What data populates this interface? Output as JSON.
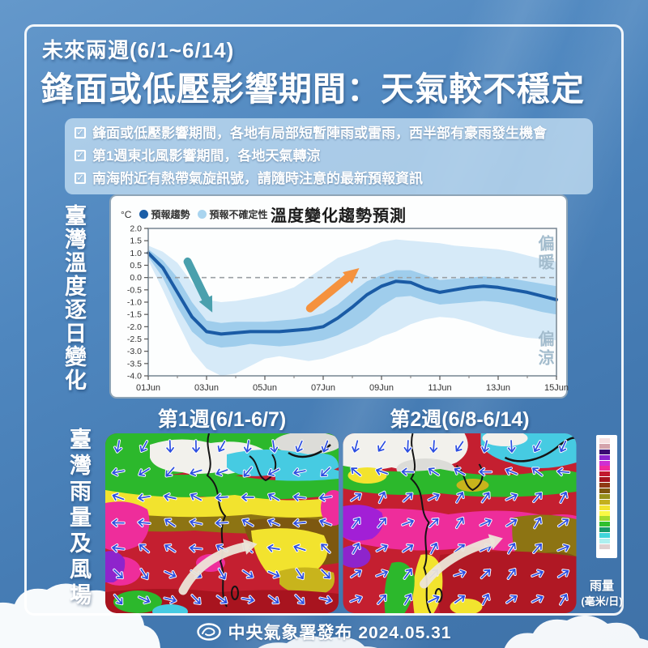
{
  "header": {
    "small_title": "未來兩週(6/1~6/14)",
    "main_title": "鋒面或低壓影響期間：天氣較不穩定"
  },
  "bullets": {
    "items": [
      {
        "label": "鋒面或低壓影響期間，各地有局部短暫陣雨或雷雨，西半部有豪雨發生機會"
      },
      {
        "label": "第1週東北風影響期間，各地天氣轉涼"
      },
      {
        "label": "南海附近有熱帶氣旋訊號，請隨時注意的最新預報資訊"
      }
    ]
  },
  "sections": {
    "temperature_title_vertical": "臺灣溫度逐日變化",
    "rain_wind_title_vertical": "臺灣雨量及風場"
  },
  "chart_data": {
    "type": "line",
    "title": "溫度變化趨勢預測",
    "unit_label": "°C",
    "legend": [
      {
        "name": "預報趨勢",
        "color": "#1b5ea7"
      },
      {
        "name": "預報不確定性",
        "color": "#a9d4ef"
      }
    ],
    "ylim": [
      -4.0,
      2.0
    ],
    "y_tick_labels": [
      "2.0",
      "1.5",
      "1.0",
      "0.5",
      "0.0",
      "-0.5",
      "-1.0",
      "-1.5",
      "-2.0",
      "-2.5",
      "-3.0",
      "-3.5",
      "-4.0"
    ],
    "x_tick_labels": [
      "01Jun",
      "03Jun",
      "05Jun",
      "07Jun",
      "09Jun",
      "11Jun",
      "13Jun",
      "15Jun"
    ],
    "x_tick_days": [
      1,
      3,
      5,
      7,
      9,
      11,
      13,
      15
    ],
    "x_minor_tick_days": [
      2,
      4,
      6,
      8,
      10,
      12,
      14
    ],
    "x_days": [
      1,
      1.5,
      2,
      2.5,
      3,
      3.5,
      4,
      4.5,
      5,
      5.5,
      6,
      6.5,
      7,
      7.5,
      8,
      8.5,
      9,
      9.5,
      10,
      10.5,
      11,
      11.5,
      12,
      12.5,
      13,
      13.5,
      14,
      14.5,
      15
    ],
    "zero_reference": 0.0,
    "trend_color": "#1a5ba5",
    "band_inner_color": "#9fcdec",
    "band_outer_color": "#d6eaf8",
    "series": [
      {
        "name": "預報趨勢",
        "role": "trend",
        "values": [
          1.0,
          0.4,
          -0.6,
          -1.6,
          -2.2,
          -2.3,
          -2.25,
          -2.2,
          -2.2,
          -2.2,
          -2.15,
          -2.1,
          -2.0,
          -1.65,
          -1.2,
          -0.7,
          -0.35,
          -0.15,
          -0.2,
          -0.45,
          -0.6,
          -0.5,
          -0.4,
          -0.35,
          -0.4,
          -0.5,
          -0.6,
          -0.75,
          -0.9
        ]
      },
      {
        "name": "預報不確定性(內帶上界)",
        "role": "band_inner_upper",
        "values": [
          1.15,
          0.7,
          0.0,
          -1.0,
          -1.75,
          -1.85,
          -1.8,
          -1.8,
          -1.8,
          -1.75,
          -1.7,
          -1.6,
          -1.45,
          -1.1,
          -0.6,
          -0.15,
          0.1,
          0.3,
          0.3,
          0.1,
          -0.1,
          -0.05,
          0.0,
          0.05,
          0.0,
          -0.05,
          -0.15,
          -0.25,
          -0.35
        ]
      },
      {
        "name": "預報不確定性(內帶下界)",
        "role": "band_inner_lower",
        "values": [
          0.85,
          0.0,
          -1.2,
          -2.2,
          -2.7,
          -2.85,
          -2.8,
          -2.7,
          -2.75,
          -2.8,
          -2.75,
          -2.65,
          -2.55,
          -2.35,
          -2.05,
          -1.65,
          -1.15,
          -0.8,
          -0.75,
          -0.95,
          -1.1,
          -1.05,
          -1.0,
          -0.95,
          -1.0,
          -1.1,
          -1.25,
          -1.4,
          -1.5
        ]
      },
      {
        "name": "預報不確定性(外帶上界)",
        "role": "band_outer_upper",
        "values": [
          1.3,
          1.05,
          0.6,
          -0.2,
          -0.9,
          -1.0,
          -0.95,
          -0.85,
          -0.75,
          -0.6,
          -0.4,
          0.0,
          0.4,
          0.8,
          1.0,
          1.2,
          1.45,
          1.55,
          1.5,
          1.45,
          1.4,
          1.3,
          1.25,
          1.2,
          1.15,
          1.05,
          0.9,
          0.75,
          0.65
        ]
      },
      {
        "name": "預報不確定性(外帶下界)",
        "role": "band_outer_lower",
        "values": [
          0.7,
          -0.5,
          -1.8,
          -3.0,
          -3.7,
          -4.0,
          -3.9,
          -3.6,
          -3.3,
          -3.2,
          -3.3,
          -3.4,
          -3.3,
          -3.1,
          -2.9,
          -2.7,
          -2.4,
          -2.2,
          -1.9,
          -1.7,
          -1.6,
          -1.65,
          -1.8,
          -2.0,
          -2.2,
          -2.35,
          -2.45,
          -2.5,
          -2.55
        ]
      }
    ],
    "annotations": {
      "warm_label": "偏暖",
      "cool_label": "偏涼",
      "arrows": [
        {
          "name": "cooling-arrow",
          "color": "#4aa0ad",
          "x1": 2.35,
          "y1": 0.65,
          "x2": 3.15,
          "y2": -1.3
        },
        {
          "name": "warming-arrow",
          "color": "#f5923e",
          "x1": 6.55,
          "y1": -1.25,
          "x2": 8.15,
          "y2": 0.3
        }
      ]
    }
  },
  "maps": {
    "week1_label": "第1週(6/1-6/7)",
    "week2_label": "第2週(6/8-6/14)",
    "wind_arrow_color": "#2b4de0",
    "colorbar": {
      "title": "雨量",
      "unit": "(毫米/日)",
      "colors": [
        "#f6e0e0",
        "#d4a3ab",
        "#3a0a72",
        "#8b24cf",
        "#cf2fd2",
        "#f12a9c",
        "#c2182f",
        "#a5131f",
        "#8f3a14",
        "#7e560e",
        "#96901a",
        "#c3b01e",
        "#f2e430",
        "#fbf945",
        "#a4da2e",
        "#2fbf2f",
        "#169a6a",
        "#3fd5da",
        "#aef0f0",
        "#ded0d0",
        "#ffffff"
      ]
    }
  },
  "footer": {
    "text": "中央氣象署發布 2024.05.31"
  }
}
